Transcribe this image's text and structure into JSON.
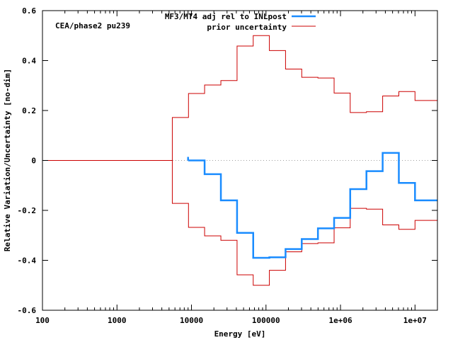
{
  "chart_data": {
    "type": "line",
    "annotation": "CEA/phase2 pu239",
    "xlabel": "Energy [eV]",
    "ylabel": "Relative Variation/Uncertainty [no-dim]",
    "xscale": "log",
    "xlim": [
      100,
      20000000
    ],
    "ylim": [
      -0.6,
      0.6
    ],
    "x_ticks": [
      {
        "value": 100,
        "label": "100"
      },
      {
        "value": 1000,
        "label": "1000"
      },
      {
        "value": 10000,
        "label": "10000"
      },
      {
        "value": 100000,
        "label": "100000"
      },
      {
        "value": 1000000,
        "label": "1e+06"
      },
      {
        "value": 10000000,
        "label": "1e+07"
      }
    ],
    "y_ticks": [
      {
        "value": -0.6,
        "label": "-0.6"
      },
      {
        "value": -0.4,
        "label": "-0.4"
      },
      {
        "value": -0.2,
        "label": "-0.2"
      },
      {
        "value": 0,
        "label": "0"
      },
      {
        "value": 0.2,
        "label": "0.2"
      },
      {
        "value": 0.4,
        "label": "0.4"
      },
      {
        "value": 0.6,
        "label": "0.6"
      }
    ],
    "legend": "top-right",
    "series": [
      {
        "name": "MF3/MT4 adj rel to INLpost",
        "color": "#1a8cff",
        "style": "step",
        "edges": [
          9000,
          15000,
          24800,
          40900,
          67400,
          111000,
          183000,
          302000,
          498000,
          821000,
          1350000,
          2230000,
          3680000,
          6070000,
          10000000,
          20000000
        ],
        "values": [
          0.0,
          -0.055,
          -0.16,
          -0.29,
          -0.39,
          -0.388,
          -0.355,
          -0.315,
          -0.272,
          -0.23,
          -0.115,
          -0.043,
          0.03,
          -0.09,
          -0.16
        ]
      },
      {
        "name": "prior uncertainty",
        "color": "#cc0000",
        "style": "step",
        "edges": [
          100,
          5530,
          9120,
          15000,
          24800,
          40900,
          67400,
          111000,
          183000,
          302000,
          498000,
          821000,
          1350000,
          2230000,
          3680000,
          6070000,
          10000000,
          20000000
        ],
        "values": [
          0.0,
          0.172,
          0.268,
          0.302,
          0.32,
          0.458,
          0.5,
          0.44,
          0.366,
          0.333,
          0.33,
          0.27,
          0.192,
          0.195,
          0.258,
          0.276,
          0.24
        ]
      }
    ]
  }
}
